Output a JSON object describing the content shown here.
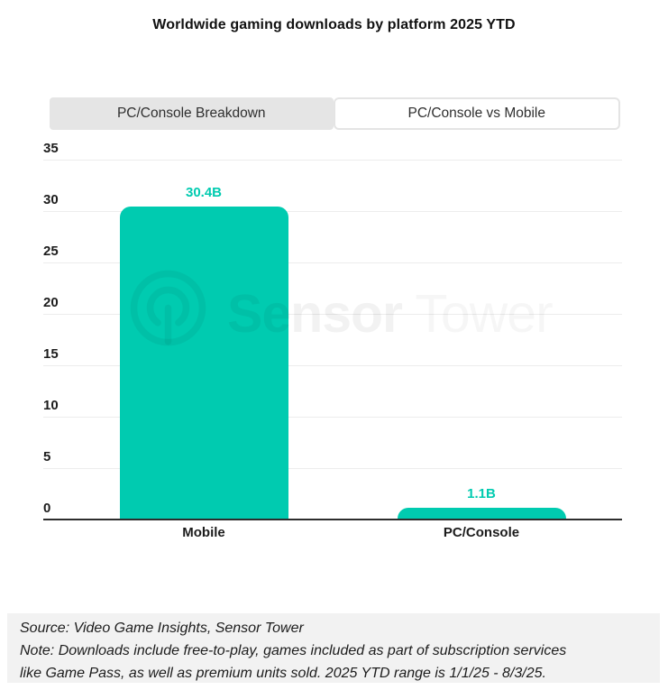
{
  "title": "Worldwide gaming downloads by platform 2025 YTD",
  "tabs": [
    {
      "label": "PC/Console Breakdown",
      "active": false
    },
    {
      "label": "PC/Console vs Mobile",
      "active": true
    }
  ],
  "watermark": {
    "logo_icon": "sensor-tower-logo",
    "text_bold": "Sensor",
    "text_light": "Tower"
  },
  "chart_data": {
    "type": "bar",
    "title": "Worldwide gaming downloads by platform 2025 YTD",
    "categories": [
      "Mobile",
      "PC/Console"
    ],
    "values": [
      30.4,
      1.1
    ],
    "value_labels": [
      "30.4B",
      "1.1B"
    ],
    "unit": "billions of downloads",
    "xlabel": "",
    "ylabel": "",
    "ylim": [
      0,
      35
    ],
    "yticks": [
      0,
      5,
      10,
      15,
      20,
      25,
      30,
      35
    ],
    "grid": true,
    "legend": "none",
    "bar_color": "#00CBB0",
    "value_label_color": "#00CBB0"
  },
  "footer": {
    "line1": "Source: Video Game Insights, Sensor Tower",
    "line2": "Note: Downloads include free-to-play, games included as part of subscription services",
    "line3": "like Game Pass, as well as premium units sold. 2025 YTD range is 1/1/25 - 8/3/25."
  },
  "colors": {
    "accent_teal": "#00CBB0",
    "inactive_tab_bg": "#e5e5e5",
    "active_tab_border": "#e4e4e4",
    "gridline": "#ededed",
    "axis_line": "#2d2d2d",
    "footer_bg": "#f2f2f2",
    "text": "#1c1c1c"
  }
}
